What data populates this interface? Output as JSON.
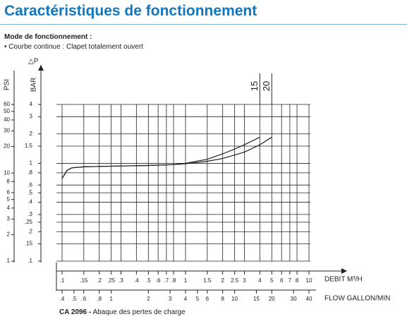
{
  "header": {
    "title": "Caractéristiques de fonctionnement",
    "mode": "Mode de fonctionnement :",
    "note": "• Courbe continue : Clapet totalement ouvert"
  },
  "caption": {
    "code": "CA 2096 -",
    "text": "Abaque des pertes de charge"
  },
  "chart_data": {
    "type": "line",
    "log_x": true,
    "log_y": true,
    "grid": true,
    "y_title": "△P",
    "ylabel": "BAR",
    "y2label": "PSI",
    "xlabel": "DEBIT M³/H",
    "x2label": "FLOW GALLON/MIN",
    "xlim": [
      0.1,
      10
    ],
    "xticks": [
      {
        "value": 0.1,
        "label": ".1"
      },
      {
        "value": 0.15,
        "label": ".15"
      },
      {
        "value": 0.2,
        "label": ".2"
      },
      {
        "value": 0.25,
        "label": ".25"
      },
      {
        "value": 0.3,
        "label": ".3"
      },
      {
        "value": 0.4,
        "label": ".4"
      },
      {
        "value": 0.5,
        "label": ".5"
      },
      {
        "value": 0.6,
        "label": ".6"
      },
      {
        "value": 0.7,
        "label": ".7"
      },
      {
        "value": 0.8,
        "label": ".8"
      },
      1,
      1.5,
      2,
      2.5,
      3,
      4,
      5,
      6,
      7,
      8,
      10
    ],
    "x2lim": [
      0.4,
      40
    ],
    "x2ticks": [
      {
        "value": 0.4,
        "label": ".4"
      },
      {
        "value": 0.5,
        "label": ".5"
      },
      {
        "value": 0.6,
        "label": ".6"
      },
      {
        "value": 0.8,
        "label": ".8"
      },
      1,
      2,
      3,
      4,
      5,
      6,
      8,
      10,
      15,
      20,
      30,
      40
    ],
    "ylim": [
      0.1,
      4
    ],
    "yticks": [
      4,
      3,
      2,
      1.5,
      1,
      {
        "value": 0.8,
        "label": ".8"
      },
      {
        "value": 0.6,
        "label": ".6"
      },
      {
        "value": 0.5,
        "label": ".5"
      },
      {
        "value": 0.4,
        "label": ".4"
      },
      {
        "value": 0.3,
        "label": ".3"
      },
      {
        "value": 0.25,
        "label": ".25"
      },
      {
        "value": 0.2,
        "label": ".2"
      },
      {
        "value": 0.15,
        "label": ".15"
      },
      {
        "value": 0.1,
        "label": ".1"
      }
    ],
    "y2lim": [
      1,
      60
    ],
    "y2ticks": [
      60,
      50,
      40,
      30,
      20,
      10,
      8,
      6,
      5,
      4,
      3,
      2,
      1
    ],
    "series": [
      {
        "name": "15",
        "color": "#222222",
        "x": [
          0.1,
          0.11,
          0.12,
          0.15,
          0.2,
          0.3,
          0.5,
          0.8,
          1,
          1.5,
          2,
          2.5,
          3,
          4
        ],
        "values": [
          0.7,
          0.85,
          0.9,
          0.92,
          0.93,
          0.94,
          0.95,
          0.97,
          1.0,
          1.1,
          1.25,
          1.4,
          1.55,
          1.85
        ]
      },
      {
        "name": "20",
        "color": "#222222",
        "x": [
          0.1,
          0.11,
          0.12,
          0.15,
          0.2,
          0.3,
          0.5,
          0.8,
          1,
          1.5,
          2,
          3,
          4,
          5
        ],
        "values": [
          0.7,
          0.85,
          0.9,
          0.92,
          0.93,
          0.94,
          0.95,
          0.97,
          0.99,
          1.05,
          1.12,
          1.3,
          1.55,
          1.85
        ]
      }
    ]
  }
}
